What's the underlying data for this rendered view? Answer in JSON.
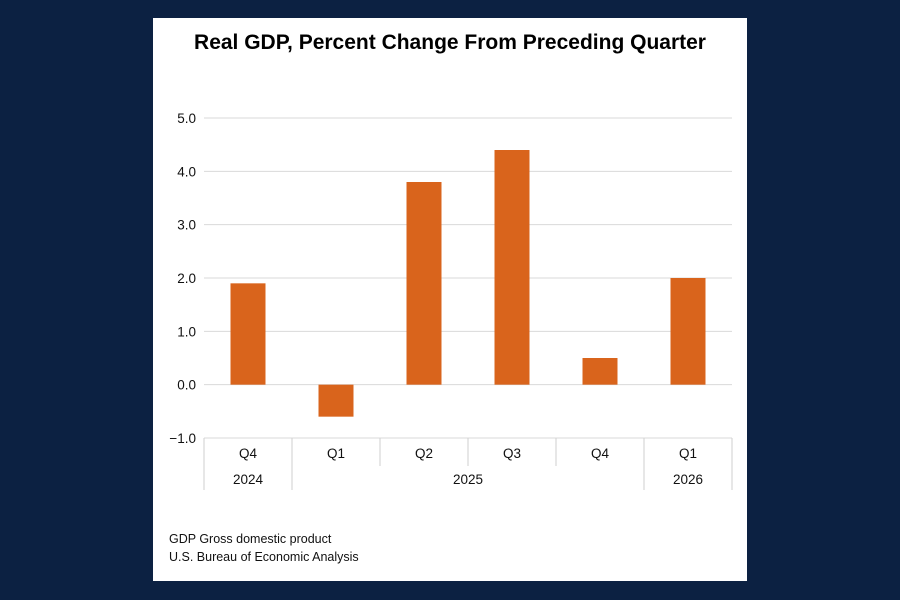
{
  "chart_data": {
    "type": "bar",
    "title": "Real GDP, Percent Change From Preceding Quarter",
    "categories": [
      "Q4",
      "Q1",
      "Q2",
      "Q3",
      "Q4",
      "Q1"
    ],
    "years": [
      {
        "label": "2024",
        "span": 1
      },
      {
        "label": "2025",
        "span": 4
      },
      {
        "label": "2026",
        "span": 1
      }
    ],
    "values": [
      1.9,
      -0.6,
      3.8,
      4.4,
      0.5,
      2.0
    ],
    "ylim": [
      -1.0,
      5.0
    ],
    "yticks": [
      "5.0",
      "4.0",
      "3.0",
      "2.0",
      "1.0",
      "0.0",
      "−1.0"
    ],
    "ytick_values": [
      5,
      4,
      3,
      2,
      1,
      0,
      -1
    ],
    "grid": true,
    "bar_color": "#d9641c"
  },
  "footnotes": {
    "line1": "GDP Gross domestic product",
    "line2": "U.S. Bureau of Economic Analysis"
  }
}
